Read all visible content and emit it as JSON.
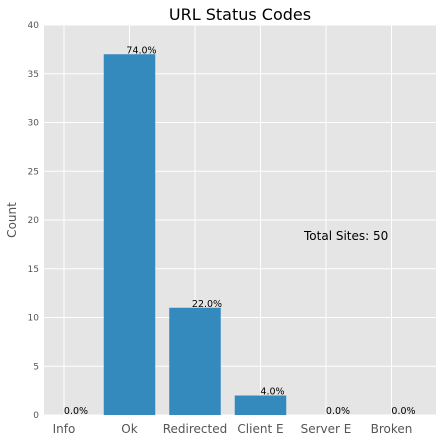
{
  "chart_data": {
    "type": "bar",
    "title": "URL Status Codes",
    "xlabel": "",
    "ylabel": "Count",
    "categories": [
      "Info",
      "Ok",
      "Redirected",
      "Client E",
      "Server E",
      "Broken"
    ],
    "values": [
      0,
      37,
      11,
      2,
      0,
      0
    ],
    "data_labels": [
      "0.0%",
      "74.0%",
      "22.0%",
      "4.0%",
      "0.0%",
      "0.0%"
    ],
    "ylim": [
      0,
      40
    ],
    "yticks": [
      0,
      5,
      10,
      15,
      20,
      25,
      30,
      35,
      40
    ],
    "grid": true,
    "annotation": "Total Sites: 50",
    "colors": {
      "bar": "#348abd",
      "background": "#e5e5e5",
      "grid": "#ffffff"
    }
  }
}
